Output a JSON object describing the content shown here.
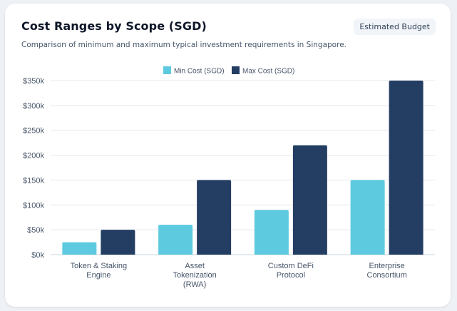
{
  "header": {
    "title": "Cost Ranges by Scope (SGD)",
    "badge": "Estimated Budget",
    "subtitle": "Comparison of minimum and maximum typical investment requirements in Singapore."
  },
  "colors": {
    "min": "#5ecae0",
    "max": "#243d63",
    "grid": "#e5e7eb",
    "tick": "#475569",
    "axis": "#cbd5e1"
  },
  "chart_data": {
    "type": "bar",
    "categories": [
      [
        "Token & Staking",
        "Engine"
      ],
      [
        "Asset",
        "Tokenization",
        "(RWA)"
      ],
      [
        "Custom DeFi",
        "Protocol"
      ],
      [
        "Enterprise",
        "Consortium"
      ]
    ],
    "series": [
      {
        "name": "Min Cost (SGD)",
        "values": [
          25000,
          60000,
          90000,
          150000
        ]
      },
      {
        "name": "Max Cost (SGD)",
        "values": [
          50000,
          150000,
          220000,
          350000
        ]
      }
    ],
    "ylim": [
      0,
      350000
    ],
    "yticks": [
      0,
      50000,
      100000,
      150000,
      200000,
      250000,
      300000,
      350000
    ],
    "ytick_labels": [
      "$0k",
      "$50k",
      "$100k",
      "$150k",
      "$200k",
      "$250k",
      "$300k",
      "$350k"
    ],
    "legend": "top-center",
    "grid": true
  }
}
